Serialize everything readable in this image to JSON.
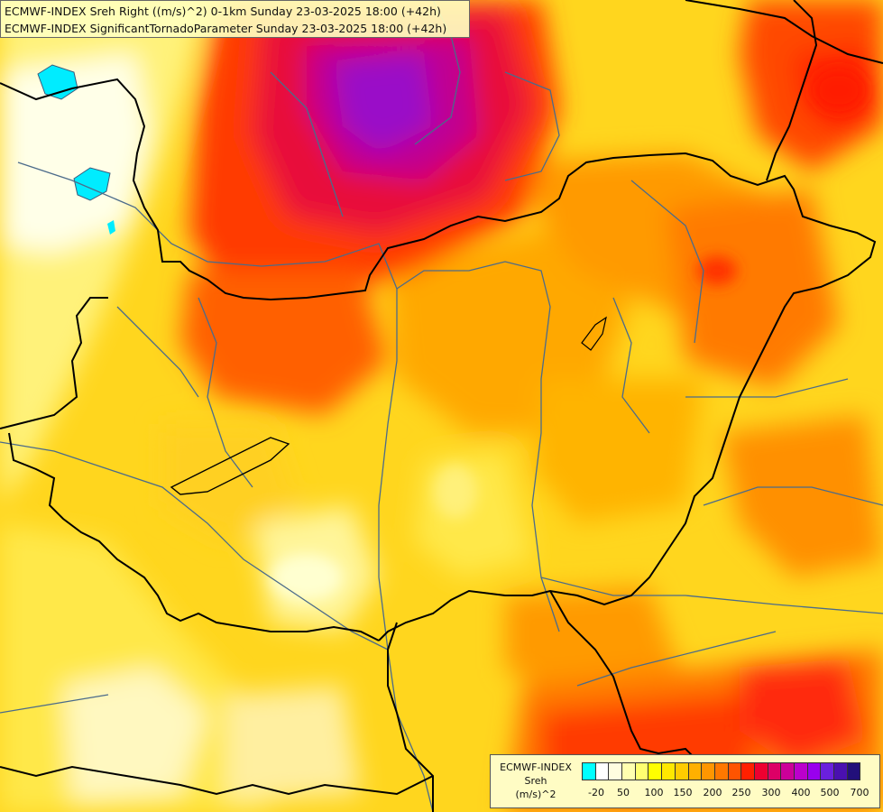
{
  "title": {
    "line1": "ECMWF-INDEX Sreh Right ((m/s)^2) 0-1km Sunday 23-03-2025 18:00 (+42h)",
    "line2": "ECMWF-INDEX SignificantTornadoParameter Sunday 23-03-2025 18:00 (+42h)"
  },
  "legend": {
    "line1": "ECMWF-INDEX",
    "line2": "Sreh",
    "line3": "(m/s)^2",
    "colors": [
      "#00ffff",
      "#ffffff",
      "#fffde0",
      "#ffffb0",
      "#ffff70",
      "#ffff00",
      "#ffe800",
      "#ffcc00",
      "#ffb000",
      "#ff9600",
      "#ff7800",
      "#ff5400",
      "#ff2000",
      "#ee0030",
      "#dd0066",
      "#cc0099",
      "#bb00cc",
      "#9900ee",
      "#6a20dd",
      "#4a10b0",
      "#22107a"
    ],
    "ticks": [
      "-20",
      "50",
      "100",
      "150",
      "200",
      "250",
      "300",
      "400",
      "500",
      "700"
    ]
  },
  "colors": {
    "borders": "#000000",
    "rivers": "#4b6b8a",
    "lakes": "#00ecff"
  }
}
